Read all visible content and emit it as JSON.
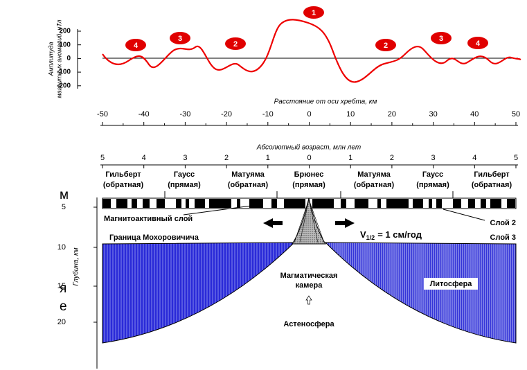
{
  "fragments": [
    "м",
    "я",
    "е"
  ],
  "anomaly": {
    "axis_label": [
      "Амплитуда",
      "магнитных аномалий, нТл"
    ],
    "ticks": [
      200,
      100,
      0,
      -100,
      -200
    ],
    "badges": [
      "4",
      "3",
      "2",
      "1",
      "2",
      "3",
      "4"
    ]
  },
  "distance": {
    "title": "Расстояние от оси хребта, км",
    "ticks": [
      -50,
      -40,
      -30,
      -20,
      -10,
      0,
      10,
      20,
      30,
      40,
      50
    ]
  },
  "age": {
    "title": "Абсолютный возраст, млн лет",
    "ticks": [
      5,
      4,
      3,
      2,
      1,
      0,
      1,
      2,
      3,
      4,
      5
    ]
  },
  "epochs": [
    {
      "name": "Гильберт",
      "polarity": "(обратная)"
    },
    {
      "name": "Гаусс",
      "polarity": "(прямая)"
    },
    {
      "name": "Матуяма",
      "polarity": "(обратная)"
    },
    {
      "name": "Брюнес",
      "polarity": "(прямая)"
    },
    {
      "name": "Матуяма",
      "polarity": "(обратная)"
    },
    {
      "name": "Гаусс",
      "polarity": "(прямая)"
    },
    {
      "name": "Гильберт",
      "polarity": "(обратная)"
    }
  ],
  "labels": {
    "magnetic_layer": "Магнитоактивный слой",
    "layer2": "Слой 2",
    "moho": "Граница Мохоровичича",
    "layer3": "Слой 3",
    "velocity": {
      "symbol": "V",
      "subscript": "1/2",
      "text": "= 1 см/год"
    },
    "chamber": [
      "Магматическая",
      "камера"
    ],
    "lithosphere": "Литосфера",
    "asthenosphere": "Астеносфера"
  },
  "depth": {
    "title": "Глубина, км",
    "ticks": [
      5,
      10,
      15,
      20
    ]
  }
}
